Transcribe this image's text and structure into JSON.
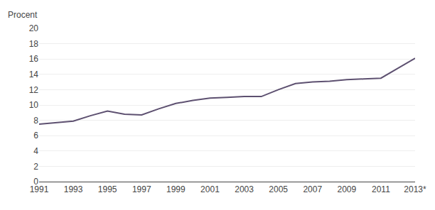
{
  "chart_data": {
    "type": "line",
    "ylabel": "Procent",
    "x": [
      1991,
      1992,
      1993,
      1994,
      1995,
      1996,
      1997,
      1998,
      1999,
      2000,
      2001,
      2002,
      2003,
      2004,
      2005,
      2006,
      2007,
      2008,
      2009,
      2010,
      2011,
      2012,
      2013
    ],
    "values": [
      7.5,
      7.7,
      7.9,
      8.6,
      9.2,
      8.8,
      8.7,
      9.5,
      10.2,
      10.6,
      10.9,
      11.0,
      11.1,
      11.1,
      12.0,
      12.8,
      13.0,
      13.1,
      13.3,
      13.4,
      13.5,
      14.8,
      16.1
    ],
    "color": "#5d5070",
    "xlim": [
      1991,
      2013
    ],
    "xticks": [
      1991,
      1993,
      1995,
      1997,
      1999,
      2001,
      2003,
      2005,
      2007,
      2009,
      2011,
      {
        "value": 2013,
        "label": "2013*"
      }
    ],
    "ylim": [
      0,
      20
    ],
    "yticks": [
      0,
      2,
      4,
      6,
      8,
      10,
      12,
      14,
      16,
      18,
      20
    ],
    "grid": true
  }
}
